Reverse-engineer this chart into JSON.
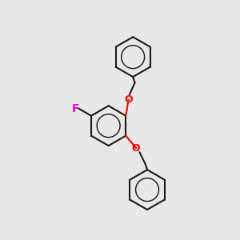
{
  "bg_color": "#e8e8e8",
  "bond_color": "#1a1a1a",
  "bond_width": 1.5,
  "O_color": "#ff0000",
  "F_color": "#ee00cc",
  "font_size_atom": 9,
  "fig_width": 3.0,
  "fig_height": 3.0,
  "dpi": 100,
  "xlim": [
    -2.8,
    2.8
  ],
  "ylim": [
    -3.2,
    3.0
  ]
}
